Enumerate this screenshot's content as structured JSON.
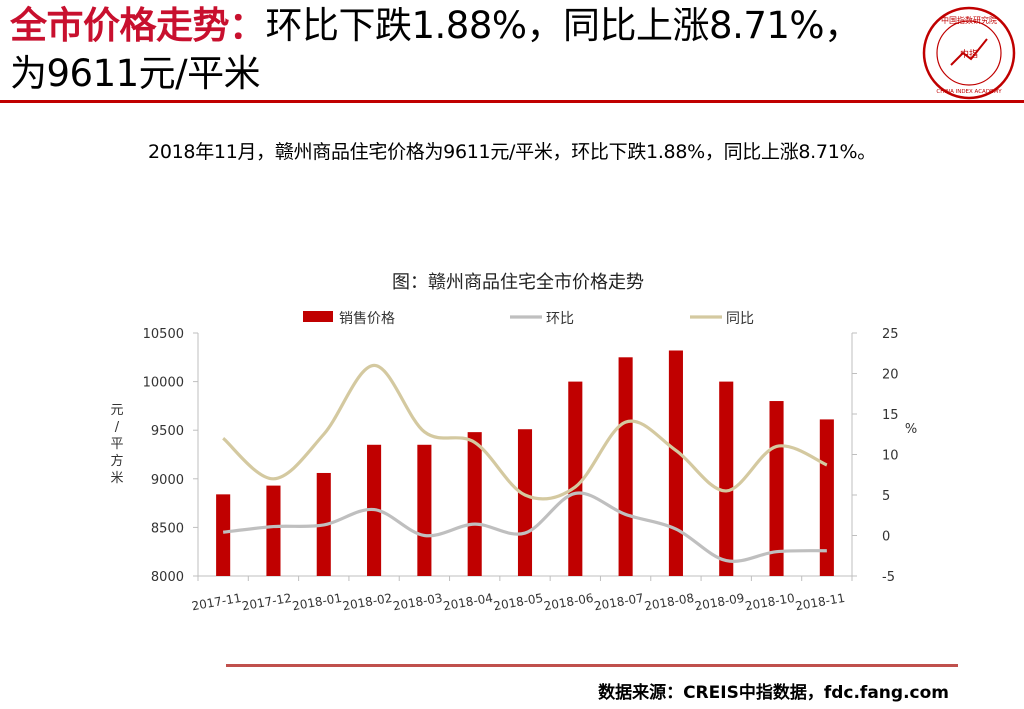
{
  "header": {
    "title_highlight": "全市价格走势：",
    "title_rest": "环比下跌1.88%，同比上涨8.71%，为9611元/平米"
  },
  "logo": {
    "icon": "china-index-academy-seal-icon",
    "text_top": "中国指数研究院",
    "text_bottom": "CHINA INDEX ACADEMY",
    "center": "中指"
  },
  "summary": "2018年11月，赣州商品住宅价格为9611元/平米，环比下跌1.88%，同比上涨8.71%。",
  "colors": {
    "accent": "#c00000",
    "bar": "#c00000",
    "mom": "#bfbfbf",
    "yoy": "#d4c9a0",
    "footer_rule": "#c0504d"
  },
  "chart_data": {
    "type": "bar+line",
    "title": "图：赣州商品住宅全市价格走势",
    "categories": [
      "2017-11",
      "2017-12",
      "2018-01",
      "2018-02",
      "2018-03",
      "2018-04",
      "2018-05",
      "2018-06",
      "2018-07",
      "2018-08",
      "2018-09",
      "2018-10",
      "2018-11"
    ],
    "series": [
      {
        "name": "销售价格",
        "type": "bar",
        "axis": "left",
        "values": [
          8840,
          8930,
          9060,
          9350,
          9350,
          9480,
          9510,
          10000,
          10250,
          10320,
          10000,
          9800,
          9611
        ]
      },
      {
        "name": "环比",
        "type": "line",
        "axis": "right",
        "values": [
          0.4,
          1.1,
          1.3,
          3.2,
          0.0,
          1.4,
          0.3,
          5.2,
          2.6,
          0.8,
          -3.1,
          -2.0,
          -1.88
        ]
      },
      {
        "name": "同比",
        "type": "line",
        "axis": "right",
        "values": [
          12.0,
          7.0,
          12.5,
          21.0,
          12.8,
          11.5,
          5.0,
          6.0,
          14.0,
          10.5,
          5.5,
          11.0,
          8.71
        ]
      }
    ],
    "ylabel_left": "元/平方米",
    "ylabel_right": "%",
    "ylim_left": [
      8000,
      10500
    ],
    "yticks_left": [
      8000,
      8500,
      9000,
      9500,
      10000,
      10500
    ],
    "ylim_right": [
      -5,
      25
    ],
    "yticks_right": [
      -5,
      0,
      5,
      10,
      15,
      20,
      25
    ],
    "grid": false,
    "legend_position": "top"
  },
  "footer": {
    "source": "数据来源：CREIS中指数据，fdc.fang.com"
  }
}
